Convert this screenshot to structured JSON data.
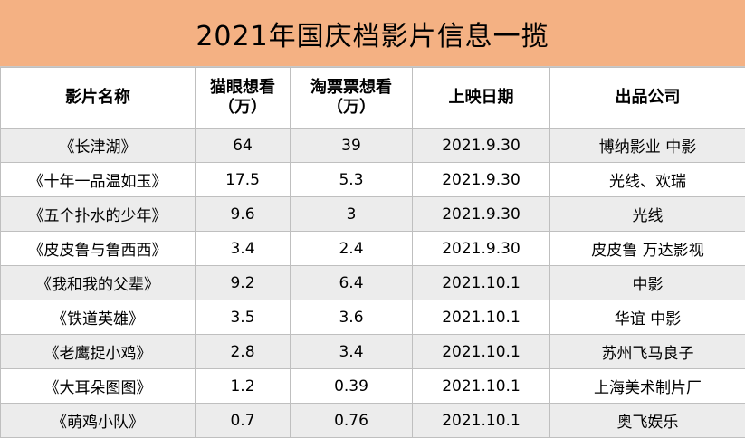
{
  "title": "2021年国庆档影片信息一揽",
  "columns": {
    "name": "影片名称",
    "maoyan_l1": "猫眼想看",
    "maoyan_l2": "（万）",
    "taopiao_l1": "淘票票想看",
    "taopiao_l2": "（万）",
    "date": "上映日期",
    "company": "出品公司"
  },
  "rows": [
    {
      "name": "《长津湖》",
      "maoyan": "64",
      "taopiao": "39",
      "date": "2021.9.30",
      "company": "博纳影业 中影"
    },
    {
      "name": "《十年一品温如玉》",
      "maoyan": "17.5",
      "taopiao": "5.3",
      "date": "2021.9.30",
      "company": "光线、欢瑞"
    },
    {
      "name": "《五个扑水的少年》",
      "maoyan": "9.6",
      "taopiao": "3",
      "date": "2021.9.30",
      "company": "光线"
    },
    {
      "name": "《皮皮鲁与鲁西西》",
      "maoyan": "3.4",
      "taopiao": "2.4",
      "date": "2021.9.30",
      "company": "皮皮鲁 万达影视"
    },
    {
      "name": "《我和我的父辈》",
      "maoyan": "9.2",
      "taopiao": "6.4",
      "date": "2021.10.1",
      "company": "中影"
    },
    {
      "name": "《铁道英雄》",
      "maoyan": "3.5",
      "taopiao": "3.6",
      "date": "2021.10.1",
      "company": "华谊 中影"
    },
    {
      "name": "《老鹰捉小鸡》",
      "maoyan": "2.8",
      "taopiao": "3.4",
      "date": "2021.10.1",
      "company": "苏州飞马良子"
    },
    {
      "name": "《大耳朵图图》",
      "maoyan": "1.2",
      "taopiao": "0.39",
      "date": "2021.10.1",
      "company": "上海美术制片厂"
    },
    {
      "name": "《萌鸡小队》",
      "maoyan": "0.7",
      "taopiao": "0.76",
      "date": "2021.10.1",
      "company": "奥飞娱乐"
    }
  ],
  "colors": {
    "title_bg": "#f4b183",
    "alt_row_bg": "#ececec",
    "border": "#bfbfbf"
  }
}
